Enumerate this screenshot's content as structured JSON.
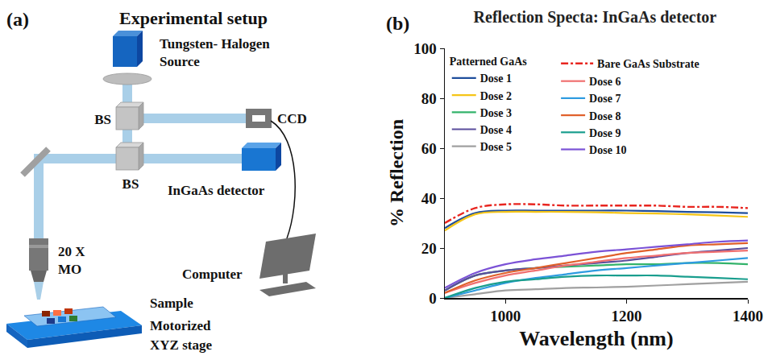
{
  "diagram": {
    "panel_label": "(a)",
    "title": "Experimental setup",
    "source": [
      "Tungsten- Halogen",
      "Source"
    ],
    "beam_splitter_1": "BS",
    "beam_splitter_2": "BS",
    "camera": "CCD",
    "detector": "InGaAs detector",
    "computer": "Computer",
    "objective": [
      "20 X",
      "MO"
    ],
    "sample": "Sample",
    "stage": [
      "Motorized",
      "XYZ stage"
    ]
  },
  "chart_data": {
    "type": "line",
    "panel_label": "(b)",
    "title": "Reflection Specta: InGaAs detector",
    "x_label": "Wavelength (nm)",
    "y_label": "% Reflection",
    "x": [
      900,
      950,
      1000,
      1050,
      1100,
      1150,
      1200,
      1250,
      1300,
      1350,
      1400
    ],
    "legend_title": "Patterned GaAs",
    "series": [
      {
        "name": "Dose 1",
        "color": "#1f4e9c",
        "values": [
          28,
          34,
          35,
          35,
          35,
          35,
          35,
          34.8,
          34.5,
          34.3,
          34
        ]
      },
      {
        "name": "Dose 2",
        "color": "#f5c518",
        "values": [
          27,
          33.5,
          34.5,
          34.5,
          34.5,
          34.3,
          34,
          33.8,
          33.5,
          33,
          32.5
        ]
      },
      {
        "name": "Dose 3",
        "color": "#33b36b",
        "values": [
          3,
          9,
          11,
          12,
          12.5,
          13,
          13.5,
          13.5,
          14,
          14,
          13.5
        ]
      },
      {
        "name": "Dose 4",
        "color": "#5a4d9c",
        "values": [
          3,
          9,
          11,
          12,
          13,
          14,
          15,
          16.5,
          18,
          19,
          20
        ]
      },
      {
        "name": "Dose 5",
        "color": "#a0a0a0",
        "values": [
          0,
          1.5,
          3,
          3.5,
          4,
          4.2,
          4.5,
          5,
          5.5,
          6,
          6.5
        ]
      },
      {
        "name": "Dose 6",
        "color": "#f07070",
        "values": [
          2,
          6,
          9,
          11,
          13,
          14.5,
          16,
          17,
          18,
          18.5,
          19
        ]
      },
      {
        "name": "Dose 7",
        "color": "#2e9be0",
        "values": [
          0,
          3,
          6,
          8,
          9.5,
          11,
          12,
          13,
          14,
          15,
          16
        ]
      },
      {
        "name": "Dose 8",
        "color": "#e0602a",
        "values": [
          2,
          7,
          10,
          12,
          14,
          16,
          18,
          19.5,
          21,
          21.5,
          22
        ]
      },
      {
        "name": "Dose 9",
        "color": "#1a9e8e",
        "values": [
          0,
          4,
          6.5,
          7.5,
          8.5,
          9,
          9,
          9,
          8.5,
          8,
          7.5
        ]
      },
      {
        "name": "Dose 10",
        "color": "#7b52d6",
        "values": [
          4,
          10,
          13.5,
          15.5,
          17,
          18.5,
          19.5,
          20.5,
          21.5,
          22.5,
          23
        ]
      }
    ],
    "reference": {
      "name": "Bare GaAs Substrate",
      "color": "#e8251f",
      "line_style": "dashdot",
      "values": [
        30,
        36,
        37.5,
        37.5,
        37,
        37,
        37,
        37,
        36.5,
        36.5,
        36
      ]
    },
    "xlim": [
      900,
      1400
    ],
    "xticks": [
      1000,
      1200,
      1400
    ],
    "ylim": [
      0,
      100
    ],
    "yticks": [
      0,
      20,
      40,
      60,
      80,
      100
    ],
    "grid": false,
    "legend": "upper left"
  }
}
